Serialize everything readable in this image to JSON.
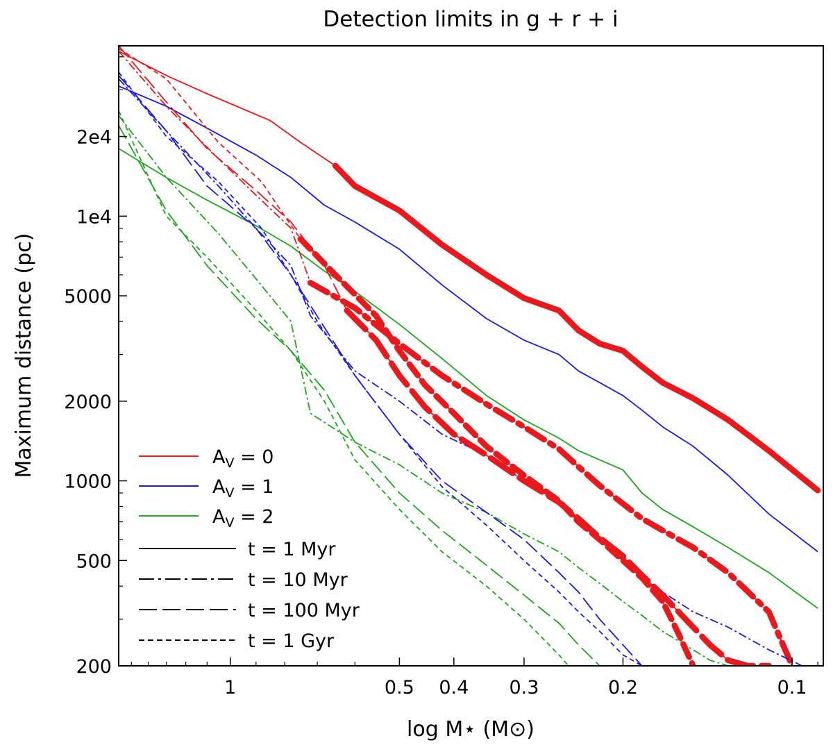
{
  "chart_data": {
    "type": "line",
    "title": "Detection limits in g + r + i",
    "xlabel": "log M⋆ (M⊙)",
    "ylabel": "Maximum distance (pc)",
    "xscale": "log-reversed",
    "yscale": "log",
    "xlim": [
      1.58,
      0.088
    ],
    "ylim": [
      200,
      44000
    ],
    "xticks": [
      {
        "value": 1.0,
        "label": "1"
      },
      {
        "value": 0.5,
        "label": "0.5"
      },
      {
        "value": 0.4,
        "label": "0.4"
      },
      {
        "value": 0.3,
        "label": "0.3"
      },
      {
        "value": 0.2,
        "label": "0.2"
      },
      {
        "value": 0.1,
        "label": "0.1"
      }
    ],
    "yticks": [
      {
        "value": 200,
        "label": "200"
      },
      {
        "value": 500,
        "label": "500"
      },
      {
        "value": 1000,
        "label": "1000"
      },
      {
        "value": 2000,
        "label": "2000"
      },
      {
        "value": 5000,
        "label": "5000"
      },
      {
        "value": 10000,
        "label": "1e4"
      },
      {
        "value": 20000,
        "label": "2e4"
      }
    ],
    "colors": {
      "Av0": "#e8191c",
      "Av1": "#1a1ae6",
      "Av2": "#1aa81a",
      "axis": "#000000"
    },
    "legend": {
      "position": "bottom-left",
      "extinction": [
        {
          "key": "Av0",
          "label": "A",
          "sub": "V",
          "suffix": " = 0"
        },
        {
          "key": "Av1",
          "label": "A",
          "sub": "V",
          "suffix": " = 1"
        },
        {
          "key": "Av2",
          "label": "A",
          "sub": "V",
          "suffix": " = 2"
        }
      ],
      "ages": [
        {
          "key": "1Myr",
          "label": "t = 1 Myr",
          "style": "solid"
        },
        {
          "key": "10Myr",
          "label": "t = 10 Myr",
          "style": "dashdot"
        },
        {
          "key": "100Myr",
          "label": "t = 100 Myr",
          "style": "longdash"
        },
        {
          "key": "1Gyr",
          "label": "t = 1 Gyr",
          "style": "shortdash"
        }
      ]
    },
    "series": [
      {
        "name": "Av0 1Myr",
        "av": "Av0",
        "age": "1Myr",
        "mass": [
          1.58,
          1.3,
          1.1,
          0.85,
          0.75,
          0.65
        ],
        "distance": [
          42000,
          34000,
          29000,
          23000,
          19000,
          15500
        ],
        "bold_mass": [
          0.65,
          0.6,
          0.5,
          0.42,
          0.35,
          0.3,
          0.26,
          0.24,
          0.22,
          0.2,
          0.185,
          0.17,
          0.15,
          0.13,
          0.11,
          0.09
        ],
        "bold_distance": [
          15500,
          13000,
          10500,
          7800,
          6000,
          4900,
          4400,
          3700,
          3300,
          3100,
          2700,
          2350,
          2050,
          1700,
          1300,
          920
        ]
      },
      {
        "name": "Av1 1Myr",
        "av": "Av1",
        "age": "1Myr",
        "mass": [
          1.58,
          1.3,
          1.1,
          0.9,
          0.78,
          0.68,
          0.6,
          0.5,
          0.42,
          0.35,
          0.3,
          0.26,
          0.24,
          0.22,
          0.2,
          0.185,
          0.17,
          0.15,
          0.13,
          0.11,
          0.09
        ],
        "distance": [
          31000,
          26000,
          21500,
          17000,
          14000,
          11000,
          9500,
          7500,
          5500,
          4100,
          3400,
          3000,
          2600,
          2350,
          2100,
          1850,
          1600,
          1350,
          1050,
          750,
          540
        ]
      },
      {
        "name": "Av2 1Myr",
        "av": "Av2",
        "age": "1Myr",
        "mass": [
          1.58,
          1.3,
          1.1,
          0.9,
          0.78,
          0.68,
          0.6,
          0.5,
          0.42,
          0.35,
          0.3,
          0.26,
          0.24,
          0.22,
          0.2,
          0.185,
          0.17,
          0.15,
          0.13,
          0.11,
          0.09
        ],
        "distance": [
          18000,
          14000,
          11500,
          9200,
          7700,
          6200,
          5200,
          3900,
          2900,
          2100,
          1700,
          1450,
          1300,
          1200,
          1100,
          900,
          780,
          670,
          560,
          450,
          330
        ]
      },
      {
        "name": "Av0 10Myr",
        "av": "Av0",
        "age": "10Myr",
        "mass": [
          1.58,
          1.3,
          1.05,
          0.9,
          0.78,
          0.72
        ],
        "distance": [
          42000,
          26000,
          16500,
          12000,
          9000,
          5600
        ],
        "bold_mass": [
          0.72,
          0.6,
          0.5,
          0.42,
          0.35,
          0.3,
          0.26,
          0.24,
          0.22,
          0.2,
          0.185,
          0.17,
          0.15,
          0.13,
          0.11,
          0.1
        ],
        "bold_distance": [
          5600,
          4500,
          3300,
          2500,
          1950,
          1600,
          1320,
          1130,
          960,
          820,
          720,
          650,
          560,
          450,
          320,
          200
        ]
      },
      {
        "name": "Av1 10Myr",
        "av": "Av1",
        "age": "10Myr",
        "mass": [
          1.58,
          1.3,
          1.05,
          0.9,
          0.78,
          0.72,
          0.6,
          0.5,
          0.42,
          0.35,
          0.3,
          0.26,
          0.24,
          0.22,
          0.2,
          0.185,
          0.17,
          0.15,
          0.13,
          0.11,
          0.096
        ],
        "distance": [
          33000,
          21000,
          13000,
          9000,
          6500,
          4200,
          2600,
          2000,
          1500,
          1250,
          1000,
          820,
          720,
          600,
          500,
          430,
          380,
          320,
          280,
          230,
          200
        ]
      },
      {
        "name": "Av2 10Myr",
        "av": "Av2",
        "age": "10Myr",
        "mass": [
          1.58,
          1.3,
          1.05,
          0.9,
          0.78,
          0.72,
          0.6,
          0.5,
          0.42,
          0.35,
          0.3,
          0.26,
          0.24,
          0.22,
          0.2,
          0.185,
          0.17,
          0.15,
          0.14,
          0.13
        ],
        "distance": [
          24000,
          14000,
          8600,
          5800,
          4000,
          1800,
          1400,
          1150,
          900,
          760,
          630,
          540,
          470,
          410,
          350,
          310,
          270,
          230,
          210,
          200
        ]
      },
      {
        "name": "Av0 100Myr",
        "av": "Av0",
        "age": "100Myr",
        "mass": [
          1.58,
          1.3,
          1.1,
          0.9,
          0.78,
          0.68,
          0.62
        ],
        "distance": [
          44000,
          27000,
          18000,
          12500,
          9500,
          6500,
          4400
        ],
        "bold_mass": [
          0.62,
          0.55,
          0.5,
          0.45,
          0.4,
          0.35,
          0.3,
          0.26,
          0.24,
          0.22,
          0.2,
          0.185,
          0.17,
          0.15,
          0.14,
          0.13,
          0.12,
          0.11
        ],
        "bold_distance": [
          4400,
          3400,
          2500,
          1900,
          1500,
          1250,
          1000,
          830,
          720,
          610,
          520,
          440,
          370,
          280,
          240,
          210,
          200,
          200
        ]
      },
      {
        "name": "Av1 100Myr",
        "av": "Av1",
        "age": "100Myr",
        "mass": [
          1.58,
          1.3,
          1.1,
          0.9,
          0.78,
          0.68,
          0.6,
          0.5,
          0.42,
          0.35,
          0.3,
          0.26,
          0.24,
          0.22,
          0.2,
          0.185
        ],
        "distance": [
          34000,
          21000,
          13000,
          9000,
          6000,
          3800,
          2500,
          1500,
          1000,
          760,
          600,
          450,
          380,
          300,
          240,
          200
        ]
      },
      {
        "name": "Av2 100Myr",
        "av": "Av2",
        "age": "100Myr",
        "mass": [
          1.58,
          1.3,
          1.1,
          0.9,
          0.78,
          0.68,
          0.6,
          0.5,
          0.42,
          0.35,
          0.3,
          0.26,
          0.24,
          0.22
        ],
        "distance": [
          22000,
          10500,
          6500,
          4100,
          3100,
          2200,
          1400,
          900,
          650,
          480,
          370,
          290,
          240,
          200
        ]
      },
      {
        "name": "Av0 1Gyr",
        "av": "Av0",
        "age": "1Gyr",
        "mass": [
          1.58,
          1.3,
          1.05,
          0.88,
          0.8,
          0.75
        ],
        "distance": [
          43000,
          33000,
          19000,
          13500,
          10000,
          8200
        ],
        "bold_mass": [
          0.75,
          0.65,
          0.55,
          0.5,
          0.45,
          0.4,
          0.35,
          0.3,
          0.26,
          0.24,
          0.22,
          0.2,
          0.185,
          0.17,
          0.16,
          0.15
        ],
        "bold_distance": [
          8200,
          6000,
          4200,
          3100,
          2300,
          1800,
          1350,
          1050,
          840,
          700,
          600,
          500,
          430,
          350,
          270,
          200
        ]
      },
      {
        "name": "Av1 1Gyr",
        "av": "Av1",
        "age": "1Gyr",
        "mass": [
          1.58,
          1.3,
          1.05,
          0.88,
          0.78,
          0.7,
          0.6,
          0.5,
          0.42,
          0.35,
          0.3,
          0.26,
          0.24,
          0.22,
          0.2,
          0.185
        ],
        "distance": [
          35000,
          20000,
          13500,
          9000,
          6000,
          4000,
          2500,
          1500,
          950,
          680,
          500,
          380,
          320,
          270,
          220,
          200
        ]
      },
      {
        "name": "Av2 1Gyr",
        "av": "Av2",
        "age": "1Gyr",
        "mass": [
          1.58,
          1.3,
          1.1,
          0.9,
          0.78,
          0.68,
          0.6,
          0.5,
          0.42,
          0.35,
          0.3,
          0.26,
          0.25
        ],
        "distance": [
          25000,
          10000,
          7000,
          4400,
          3100,
          2000,
          1200,
          780,
          540,
          400,
          300,
          220,
          200
        ]
      }
    ]
  }
}
